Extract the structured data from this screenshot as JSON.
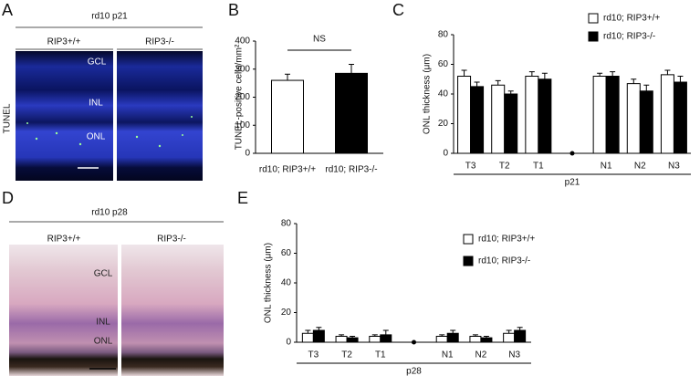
{
  "panels": {
    "A": {
      "letter": "A",
      "title": "rd10 p21",
      "columns": [
        "RIP3+/+",
        "RIP3-/-"
      ],
      "side_label": "TUNEL",
      "layers": [
        "GCL",
        "INL",
        "ONL"
      ]
    },
    "D": {
      "letter": "D",
      "title": "rd10 p28",
      "columns": [
        "RIP3+/+",
        "RIP3-/-"
      ],
      "layers": [
        "GCL",
        "INL",
        "ONL"
      ]
    }
  },
  "chart_data": [
    {
      "type": "bar",
      "label": "B",
      "ylabel": "TUNEL-positive cells/mm²",
      "categories": [
        "rd10; RIP3+/+",
        "rd10; RIP3-/-"
      ],
      "values": [
        260,
        285
      ],
      "errors": [
        22,
        32
      ],
      "colors": [
        "#ffffff",
        "#000000"
      ],
      "annotation": "NS",
      "ylim": [
        0,
        400
      ],
      "yticks": [
        0,
        100,
        200,
        300,
        400
      ]
    },
    {
      "type": "grouped_bar",
      "label": "C",
      "ylabel": "ONL thickness (μm)",
      "xlabel": "p21",
      "categories": [
        "T3",
        "T2",
        "T1",
        null,
        "N1",
        "N2",
        "N3"
      ],
      "series": [
        {
          "name": "rd10; RIP3+/+",
          "color": "#ffffff",
          "values": [
            52,
            46,
            52,
            null,
            52,
            47,
            53
          ],
          "errors": [
            4,
            3,
            3,
            null,
            2,
            3,
            3
          ]
        },
        {
          "name": "rd10; RIP3-/-",
          "color": "#000000",
          "values": [
            45,
            40,
            50,
            null,
            52,
            42,
            48
          ],
          "errors": [
            3,
            2,
            4,
            null,
            3,
            4,
            4
          ]
        }
      ],
      "ylim": [
        0,
        80
      ],
      "yticks": [
        0,
        20,
        40,
        60,
        80
      ]
    },
    {
      "type": "grouped_bar",
      "label": "E",
      "ylabel": "ONL thickness (μm)",
      "xlabel": "p28",
      "categories": [
        "T3",
        "T2",
        "T1",
        null,
        "N1",
        "N2",
        "N3"
      ],
      "series": [
        {
          "name": "rd10; RIP3+/+",
          "color": "#ffffff",
          "values": [
            6,
            4,
            4,
            null,
            4,
            4,
            6
          ],
          "errors": [
            2,
            1,
            1,
            null,
            1,
            1,
            2
          ]
        },
        {
          "name": "rd10; RIP3-/-",
          "color": "#000000",
          "values": [
            8,
            3,
            5,
            null,
            6,
            3,
            8
          ],
          "errors": [
            2,
            1,
            3,
            null,
            2,
            1,
            2
          ]
        }
      ],
      "ylim": [
        0,
        80
      ],
      "yticks": [
        0,
        20,
        40,
        60,
        80
      ]
    }
  ]
}
